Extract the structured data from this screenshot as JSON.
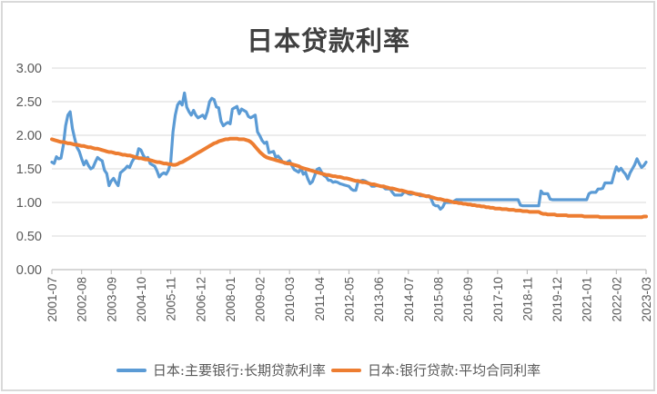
{
  "chart_data": {
    "type": "line",
    "title": "日本贷款利率",
    "x_start": "2001-07",
    "x_end": "2023-03",
    "freq": "monthly",
    "x_tick_interval_months": 13,
    "x_tick_labels": [
      "2001-07",
      "2002-08",
      "2003-09",
      "2004-10",
      "2005-11",
      "2006-12",
      "2008-01",
      "2009-02",
      "2010-03",
      "2011-04",
      "2012-05",
      "2013-06",
      "2014-07",
      "2015-08",
      "2016-09",
      "2017-10",
      "2018-11",
      "2019-12",
      "2021-01",
      "2022-02",
      "2023-03"
    ],
    "y_ticks": [
      {
        "label": "3.00",
        "value": 3.0
      },
      {
        "label": "2.50",
        "value": 2.5
      },
      {
        "label": "2.00",
        "value": 2.0
      },
      {
        "label": "1.50",
        "value": 1.5
      },
      {
        "label": "1.00",
        "value": 1.0
      },
      {
        "label": "0.50",
        "value": 0.5
      },
      {
        "label": "0.00",
        "value": 0.0
      }
    ],
    "ylim": [
      0,
      3
    ],
    "grid": true,
    "legend_position": "bottom",
    "series": [
      {
        "name": "日本:主要银行:长期贷款利率",
        "color": "#5B9BD5",
        "values": [
          1.6,
          1.58,
          1.68,
          1.65,
          1.66,
          1.85,
          2.14,
          2.3,
          2.35,
          2.1,
          1.95,
          1.82,
          1.76,
          1.65,
          1.56,
          1.62,
          1.55,
          1.5,
          1.52,
          1.6,
          1.67,
          1.64,
          1.62,
          1.48,
          1.43,
          1.25,
          1.32,
          1.36,
          1.3,
          1.25,
          1.44,
          1.47,
          1.5,
          1.54,
          1.52,
          1.6,
          1.66,
          1.66,
          1.8,
          1.78,
          1.7,
          1.65,
          1.67,
          1.58,
          1.56,
          1.54,
          1.47,
          1.38,
          1.42,
          1.44,
          1.42,
          1.48,
          1.6,
          2.05,
          2.3,
          2.45,
          2.5,
          2.45,
          2.63,
          2.42,
          2.35,
          2.3,
          2.37,
          2.3,
          2.26,
          2.28,
          2.3,
          2.25,
          2.35,
          2.5,
          2.55,
          2.53,
          2.42,
          2.41,
          2.21,
          2.14,
          2.17,
          2.19,
          2.17,
          2.39,
          2.41,
          2.43,
          2.32,
          2.39,
          2.37,
          2.35,
          2.28,
          2.26,
          2.28,
          2.3,
          2.05,
          1.99,
          1.92,
          1.88,
          1.9,
          1.74,
          1.75,
          1.76,
          1.67,
          1.69,
          1.65,
          1.6,
          1.58,
          1.6,
          1.62,
          1.55,
          1.49,
          1.47,
          1.45,
          1.51,
          1.42,
          1.45,
          1.35,
          1.28,
          1.31,
          1.4,
          1.49,
          1.51,
          1.45,
          1.4,
          1.38,
          1.33,
          1.33,
          1.3,
          1.31,
          1.3,
          1.28,
          1.27,
          1.26,
          1.25,
          1.24,
          1.2,
          1.18,
          1.18,
          1.31,
          1.32,
          1.33,
          1.32,
          1.3,
          1.28,
          1.24,
          1.24,
          1.25,
          1.25,
          1.24,
          1.23,
          1.2,
          1.2,
          1.2,
          1.15,
          1.11,
          1.11,
          1.11,
          1.11,
          1.15,
          1.15,
          1.13,
          1.12,
          1.13,
          1.13,
          1.13,
          1.1,
          1.1,
          1.1,
          1.1,
          1.1,
          1.05,
          0.97,
          0.95,
          0.95,
          0.9,
          0.93,
          1.0,
          1.0,
          1.0,
          1.0,
          1.02,
          1.04,
          1.04,
          1.04,
          1.04,
          1.04,
          1.04,
          1.04,
          1.04,
          1.04,
          1.04,
          1.04,
          1.04,
          1.04,
          1.04,
          1.04,
          1.04,
          1.04,
          1.04,
          1.04,
          1.04,
          1.04,
          1.04,
          1.04,
          1.04,
          1.04,
          1.04,
          1.04,
          1.04,
          0.96,
          0.95,
          0.95,
          0.95,
          0.95,
          0.95,
          0.95,
          0.95,
          0.95,
          1.17,
          1.13,
          1.13,
          1.13,
          1.05,
          1.04,
          1.04,
          1.04,
          1.04,
          1.04,
          1.04,
          1.04,
          1.04,
          1.04,
          1.04,
          1.04,
          1.04,
          1.04,
          1.04,
          1.04,
          1.04,
          1.13,
          1.15,
          1.15,
          1.15,
          1.2,
          1.2,
          1.21,
          1.29,
          1.29,
          1.29,
          1.29,
          1.42,
          1.53,
          1.47,
          1.51,
          1.46,
          1.42,
          1.35,
          1.44,
          1.5,
          1.56,
          1.65,
          1.58,
          1.52,
          1.55,
          1.6
        ]
      },
      {
        "name": "日本:银行贷款:平均合同利率",
        "color": "#ED7D31",
        "values": [
          1.94,
          1.93,
          1.92,
          1.91,
          1.9,
          1.9,
          1.89,
          1.88,
          1.88,
          1.87,
          1.86,
          1.86,
          1.85,
          1.84,
          1.84,
          1.83,
          1.82,
          1.82,
          1.81,
          1.8,
          1.8,
          1.79,
          1.78,
          1.77,
          1.76,
          1.75,
          1.75,
          1.74,
          1.73,
          1.73,
          1.72,
          1.71,
          1.71,
          1.7,
          1.7,
          1.69,
          1.68,
          1.67,
          1.66,
          1.66,
          1.65,
          1.64,
          1.64,
          1.63,
          1.62,
          1.61,
          1.6,
          1.6,
          1.59,
          1.58,
          1.58,
          1.57,
          1.57,
          1.56,
          1.56,
          1.57,
          1.59,
          1.6,
          1.62,
          1.64,
          1.66,
          1.68,
          1.7,
          1.72,
          1.74,
          1.76,
          1.78,
          1.8,
          1.82,
          1.84,
          1.86,
          1.88,
          1.89,
          1.91,
          1.92,
          1.93,
          1.94,
          1.94,
          1.95,
          1.95,
          1.95,
          1.95,
          1.94,
          1.94,
          1.94,
          1.93,
          1.92,
          1.9,
          1.87,
          1.83,
          1.79,
          1.75,
          1.72,
          1.69,
          1.67,
          1.66,
          1.65,
          1.64,
          1.63,
          1.62,
          1.61,
          1.6,
          1.59,
          1.58,
          1.58,
          1.57,
          1.56,
          1.55,
          1.54,
          1.52,
          1.51,
          1.5,
          1.49,
          1.48,
          1.47,
          1.46,
          1.45,
          1.44,
          1.43,
          1.42,
          1.41,
          1.41,
          1.4,
          1.39,
          1.39,
          1.38,
          1.38,
          1.37,
          1.36,
          1.36,
          1.35,
          1.34,
          1.33,
          1.32,
          1.32,
          1.31,
          1.3,
          1.3,
          1.29,
          1.28,
          1.27,
          1.27,
          1.26,
          1.25,
          1.24,
          1.24,
          1.23,
          1.22,
          1.21,
          1.21,
          1.2,
          1.19,
          1.18,
          1.18,
          1.17,
          1.16,
          1.15,
          1.15,
          1.14,
          1.13,
          1.12,
          1.12,
          1.11,
          1.1,
          1.09,
          1.09,
          1.08,
          1.07,
          1.06,
          1.05,
          1.05,
          1.04,
          1.03,
          1.03,
          1.02,
          1.01,
          1.0,
          1.0,
          0.99,
          0.99,
          0.98,
          0.98,
          0.97,
          0.97,
          0.96,
          0.96,
          0.95,
          0.95,
          0.94,
          0.94,
          0.93,
          0.93,
          0.92,
          0.92,
          0.91,
          0.91,
          0.91,
          0.9,
          0.9,
          0.9,
          0.89,
          0.89,
          0.89,
          0.88,
          0.88,
          0.88,
          0.87,
          0.87,
          0.87,
          0.86,
          0.86,
          0.86,
          0.86,
          0.86,
          0.84,
          0.83,
          0.83,
          0.82,
          0.82,
          0.82,
          0.82,
          0.81,
          0.81,
          0.81,
          0.81,
          0.81,
          0.8,
          0.8,
          0.8,
          0.8,
          0.8,
          0.8,
          0.8,
          0.79,
          0.79,
          0.79,
          0.79,
          0.79,
          0.79,
          0.79,
          0.78,
          0.78,
          0.78,
          0.78,
          0.78,
          0.78,
          0.78,
          0.78,
          0.78,
          0.78,
          0.78,
          0.78,
          0.78,
          0.78,
          0.78,
          0.78,
          0.78,
          0.78,
          0.78,
          0.79,
          0.79
        ]
      }
    ]
  },
  "colors": {
    "background": "#FFFFFF",
    "frame_border": "#D9D9D9",
    "grid": "#D9D9D9",
    "axis": "#BFBFBF",
    "tick_text": "#595959",
    "title_text": "#404040",
    "legend_text": "#595959"
  }
}
